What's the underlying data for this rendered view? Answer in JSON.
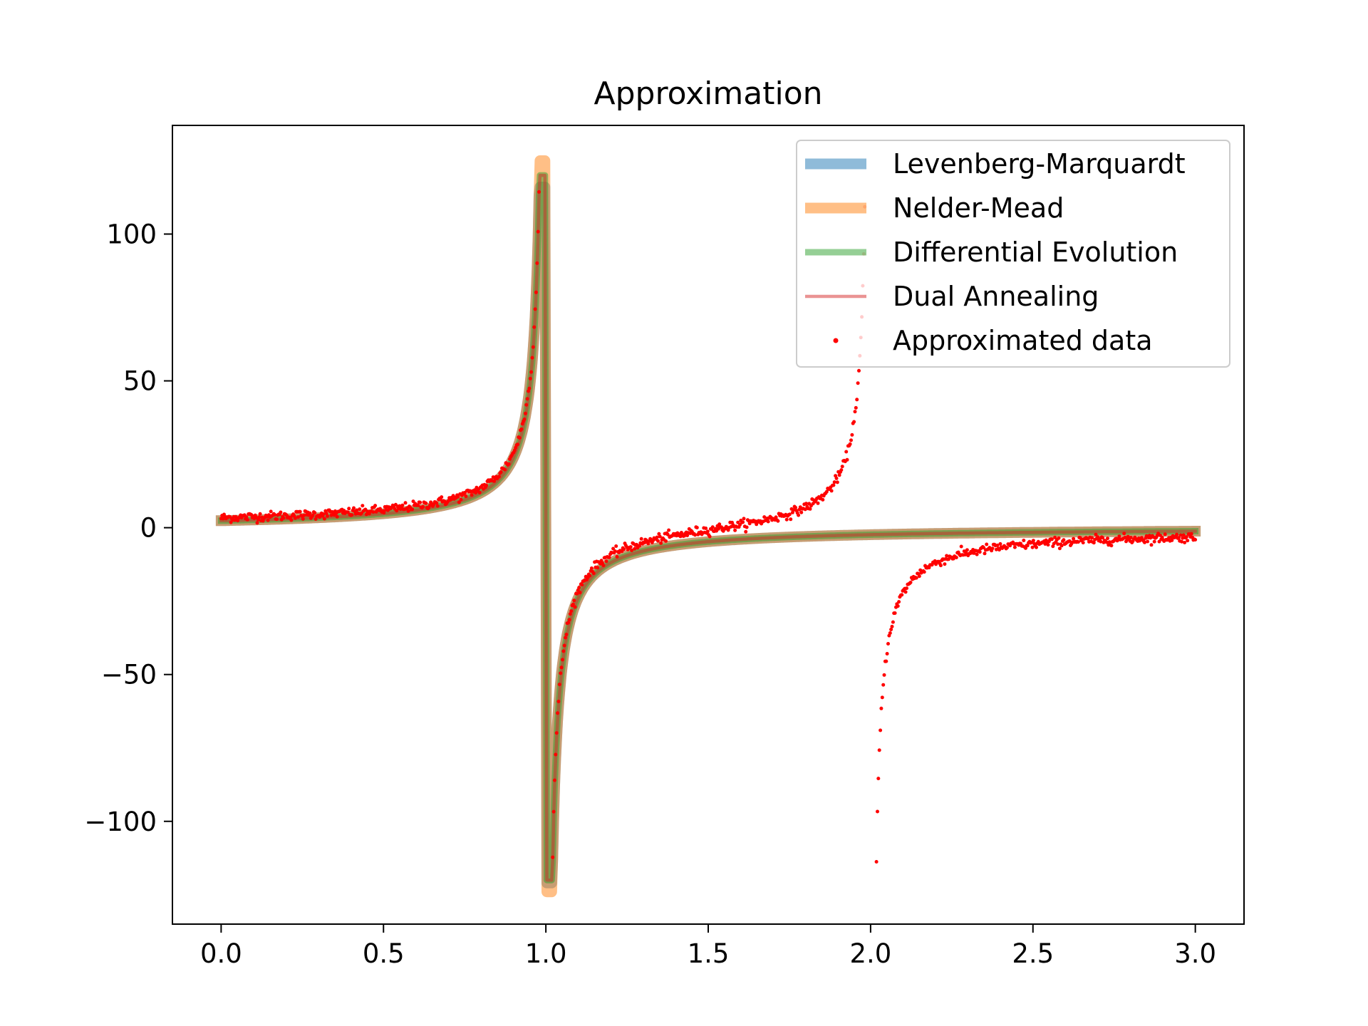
{
  "chart_data": {
    "type": "line",
    "title": "Approximation",
    "xlabel": "",
    "ylabel": "",
    "xlim": [
      -0.15,
      3.15
    ],
    "ylim": [
      -135,
      137
    ],
    "x_ticks": [
      0.0,
      0.5,
      1.0,
      1.5,
      2.0,
      2.5,
      3.0
    ],
    "x_tick_labels": [
      "0.0",
      "0.5",
      "1.0",
      "1.5",
      "2.0",
      "2.5",
      "3.0"
    ],
    "y_ticks": [
      -100,
      -50,
      0,
      50,
      100
    ],
    "y_tick_labels": [
      "−100",
      "−50",
      "0",
      "50",
      "100"
    ],
    "grid": false,
    "legend_position": "top-right",
    "fit_model": "y = 1 / (a·(1 − x)) with a ≈ 0.42, sampled on x in [0, 3]",
    "series": [
      {
        "name": "Levenberg-Marquardt",
        "kind": "line",
        "color": "#1f77b4",
        "alpha": 0.5,
        "line_width": 5,
        "x": [
          0.0,
          0.5,
          0.8,
          0.9,
          0.95,
          0.98,
          0.992,
          0.996,
          1.004,
          1.008,
          1.02,
          1.05,
          1.1,
          1.2,
          1.5,
          2.0,
          2.5,
          3.0
        ],
        "values": [
          2.4,
          4.8,
          11.9,
          23.8,
          47.6,
          119,
          116,
          -116,
          -119,
          -120,
          -119,
          -47.6,
          -23.8,
          -11.9,
          -4.8,
          -2.4,
          -1.6,
          -1.2
        ]
      },
      {
        "name": "Nelder-Mead",
        "kind": "line",
        "color": "#ff7f0e",
        "alpha": 0.5,
        "line_width": 5,
        "x": [
          0.0,
          0.5,
          0.8,
          0.9,
          0.95,
          0.98,
          0.992,
          0.996,
          1.004,
          1.008,
          1.02,
          1.05,
          1.1,
          1.2,
          1.5,
          2.0,
          2.5,
          3.0
        ],
        "values": [
          2.4,
          4.8,
          11.9,
          23.8,
          47.6,
          119,
          125,
          -124,
          -123,
          -122,
          -119,
          -47.6,
          -23.8,
          -11.9,
          -4.8,
          -2.4,
          -1.6,
          -1.2
        ]
      },
      {
        "name": "Differential Evolution",
        "kind": "line",
        "color": "#2ca02c",
        "alpha": 0.5,
        "line_width": 3,
        "x": [
          0.0,
          0.5,
          0.8,
          0.9,
          0.95,
          0.98,
          0.992,
          0.996,
          1.004,
          1.008,
          1.02,
          1.05,
          1.1,
          1.2,
          1.5,
          2.0,
          2.5,
          3.0
        ],
        "values": [
          2.4,
          4.8,
          11.9,
          23.8,
          47.6,
          119,
          120,
          -120,
          -120,
          -120,
          -119,
          -47.6,
          -23.8,
          -11.9,
          -4.8,
          -2.4,
          -1.6,
          -1.2
        ]
      },
      {
        "name": "Dual Annealing",
        "kind": "line",
        "color": "#d62728",
        "alpha": 0.5,
        "line_width": 1.5,
        "x": [
          0.0,
          0.5,
          0.8,
          0.9,
          0.95,
          0.98,
          0.992,
          0.996,
          1.004,
          1.008,
          1.02,
          1.05,
          1.1,
          1.2,
          1.5,
          2.0,
          2.5,
          3.0
        ],
        "values": [
          2.4,
          4.8,
          11.9,
          23.8,
          47.6,
          119,
          120,
          -120,
          -120,
          -120,
          -119,
          -47.6,
          -23.8,
          -11.9,
          -4.8,
          -2.4,
          -1.6,
          -1.2
        ]
      },
      {
        "name": "Approximated data",
        "kind": "scatter",
        "color": "#ff0000",
        "marker_size": 2.5,
        "data_model": "y = 1/(a(1−x)) + 1/(b(2−x)) + noise, a ≈ 0.42, b ≈ 0.5, 1000 samples on [0, 3], noise sigma ≈ 0.8",
        "x_range": [
          0,
          3
        ],
        "count": 1000
      }
    ]
  }
}
